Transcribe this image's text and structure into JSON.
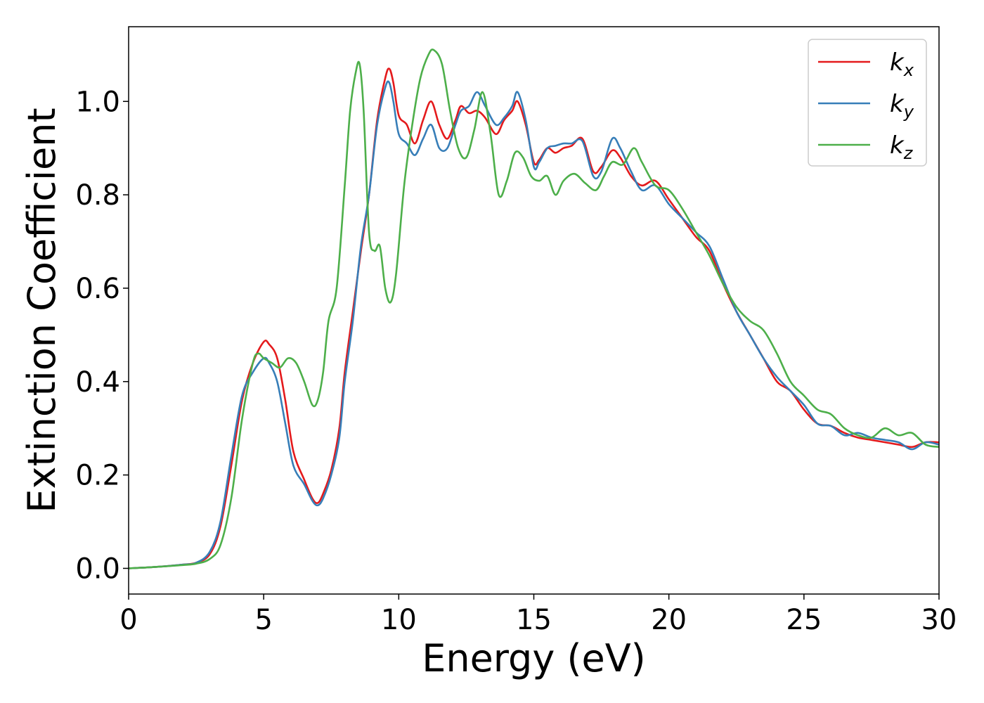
{
  "chart_data": {
    "type": "line",
    "xlabel": "Energy (eV)",
    "ylabel": "Extinction Coefficient",
    "xlim": [
      0,
      30
    ],
    "ylim": [
      -0.055,
      1.16
    ],
    "xticks": [
      0,
      5,
      10,
      15,
      20,
      25,
      30
    ],
    "xtick_labels": [
      "0",
      "5",
      "10",
      "15",
      "20",
      "25",
      "30"
    ],
    "yticks": [
      0.0,
      0.2,
      0.4,
      0.6,
      0.8,
      1.0
    ],
    "ytick_labels": [
      "0.0",
      "0.2",
      "0.4",
      "0.6",
      "0.8",
      "1.0"
    ],
    "grid": false,
    "legend_position": "top-right",
    "series": [
      {
        "name": "k_x",
        "label_base": "k",
        "label_sub": "x",
        "color": "#e41a1c",
        "x": [
          0,
          1,
          2,
          2.5,
          3,
          3.4,
          3.8,
          4.2,
          4.6,
          5.0,
          5.2,
          5.5,
          5.8,
          6.1,
          6.5,
          6.8,
          7.0,
          7.2,
          7.5,
          7.8,
          8.0,
          8.3,
          8.6,
          8.9,
          9.2,
          9.5,
          9.65,
          9.8,
          10.0,
          10.3,
          10.6,
          10.9,
          11.2,
          11.5,
          11.8,
          12.1,
          12.3,
          12.6,
          12.9,
          13.2,
          13.6,
          13.9,
          14.2,
          14.4,
          14.7,
          15.0,
          15.2,
          15.5,
          15.8,
          16.1,
          16.4,
          16.8,
          17.2,
          17.5,
          17.9,
          18.2,
          18.6,
          19.0,
          19.5,
          20.0,
          20.5,
          21.0,
          21.5,
          22.0,
          22.5,
          23.0,
          23.5,
          24.0,
          24.5,
          25.0,
          25.5,
          26.0,
          26.5,
          27.0,
          27.5,
          28.0,
          28.5,
          29.0,
          29.5,
          30.0
        ],
        "values": [
          0.0,
          0.003,
          0.008,
          0.012,
          0.03,
          0.09,
          0.22,
          0.36,
          0.44,
          0.485,
          0.48,
          0.45,
          0.36,
          0.25,
          0.19,
          0.15,
          0.14,
          0.16,
          0.21,
          0.3,
          0.42,
          0.55,
          0.68,
          0.8,
          0.96,
          1.05,
          1.07,
          1.04,
          0.97,
          0.95,
          0.91,
          0.96,
          1.0,
          0.95,
          0.92,
          0.96,
          0.99,
          0.975,
          0.98,
          0.965,
          0.93,
          0.96,
          0.98,
          1.0,
          0.95,
          0.87,
          0.875,
          0.9,
          0.89,
          0.9,
          0.905,
          0.92,
          0.85,
          0.86,
          0.895,
          0.88,
          0.84,
          0.82,
          0.83,
          0.79,
          0.75,
          0.71,
          0.68,
          0.61,
          0.55,
          0.5,
          0.45,
          0.4,
          0.38,
          0.34,
          0.31,
          0.305,
          0.29,
          0.28,
          0.275,
          0.27,
          0.265,
          0.26,
          0.27,
          0.27
        ]
      },
      {
        "name": "k_y",
        "label_base": "k",
        "label_sub": "y",
        "color": "#377eb8",
        "x": [
          0,
          1,
          2,
          2.5,
          3,
          3.4,
          3.8,
          4.2,
          4.6,
          5.0,
          5.2,
          5.5,
          5.8,
          6.1,
          6.5,
          6.8,
          7.0,
          7.2,
          7.5,
          7.8,
          8.0,
          8.3,
          8.6,
          8.9,
          9.2,
          9.5,
          9.65,
          9.8,
          10.0,
          10.3,
          10.6,
          10.9,
          11.2,
          11.5,
          11.8,
          12.1,
          12.3,
          12.6,
          12.9,
          13.2,
          13.6,
          13.9,
          14.2,
          14.4,
          14.7,
          15.0,
          15.2,
          15.5,
          15.8,
          16.1,
          16.4,
          16.8,
          17.2,
          17.5,
          17.9,
          18.2,
          18.6,
          19.0,
          19.5,
          20.0,
          20.5,
          21.0,
          21.5,
          22.0,
          22.5,
          23.0,
          23.5,
          24.0,
          24.5,
          25.0,
          25.5,
          26.0,
          26.5,
          27.0,
          27.5,
          28.0,
          28.5,
          29.0,
          29.5,
          30.0
        ],
        "values": [
          0.0,
          0.003,
          0.008,
          0.012,
          0.035,
          0.1,
          0.24,
          0.37,
          0.42,
          0.45,
          0.44,
          0.4,
          0.31,
          0.22,
          0.18,
          0.145,
          0.135,
          0.15,
          0.2,
          0.28,
          0.4,
          0.53,
          0.69,
          0.8,
          0.95,
          1.03,
          1.04,
          1.0,
          0.93,
          0.91,
          0.885,
          0.92,
          0.95,
          0.9,
          0.9,
          0.95,
          0.98,
          0.99,
          1.02,
          0.99,
          0.95,
          0.965,
          0.99,
          1.02,
          0.96,
          0.86,
          0.87,
          0.9,
          0.905,
          0.91,
          0.91,
          0.915,
          0.84,
          0.85,
          0.92,
          0.9,
          0.85,
          0.81,
          0.82,
          0.78,
          0.75,
          0.72,
          0.69,
          0.62,
          0.55,
          0.5,
          0.45,
          0.41,
          0.38,
          0.35,
          0.31,
          0.305,
          0.285,
          0.29,
          0.28,
          0.275,
          0.27,
          0.255,
          0.27,
          0.265
        ]
      },
      {
        "name": "k_z",
        "label_base": "k",
        "label_sub": "z",
        "color": "#4daf4a",
        "x": [
          0,
          1,
          2,
          2.5,
          3,
          3.4,
          3.8,
          4.2,
          4.6,
          4.8,
          5.0,
          5.3,
          5.6,
          5.9,
          6.2,
          6.5,
          6.8,
          7.0,
          7.2,
          7.4,
          7.7,
          8.0,
          8.2,
          8.4,
          8.55,
          8.7,
          8.9,
          9.1,
          9.3,
          9.5,
          9.7,
          9.9,
          10.2,
          10.5,
          10.8,
          11.1,
          11.3,
          11.6,
          11.9,
          12.2,
          12.5,
          12.8,
          13.1,
          13.4,
          13.7,
          14.0,
          14.3,
          14.6,
          14.9,
          15.2,
          15.5,
          15.8,
          16.1,
          16.5,
          16.9,
          17.3,
          17.6,
          17.9,
          18.3,
          18.7,
          19.0,
          19.5,
          20.0,
          20.5,
          21.0,
          21.5,
          22.0,
          22.5,
          23.0,
          23.5,
          24.0,
          24.5,
          25.0,
          25.5,
          26.0,
          26.5,
          27.0,
          27.5,
          28.0,
          28.5,
          29.0,
          29.5,
          30.0
        ],
        "values": [
          0.0,
          0.003,
          0.007,
          0.01,
          0.02,
          0.05,
          0.15,
          0.32,
          0.44,
          0.46,
          0.45,
          0.44,
          0.43,
          0.45,
          0.44,
          0.4,
          0.35,
          0.36,
          0.42,
          0.53,
          0.6,
          0.82,
          0.98,
          1.06,
          1.08,
          0.98,
          0.72,
          0.68,
          0.69,
          0.6,
          0.57,
          0.63,
          0.82,
          0.95,
          1.05,
          1.1,
          1.11,
          1.08,
          0.98,
          0.9,
          0.88,
          0.94,
          1.02,
          0.93,
          0.8,
          0.83,
          0.89,
          0.88,
          0.84,
          0.83,
          0.84,
          0.8,
          0.83,
          0.845,
          0.825,
          0.81,
          0.84,
          0.87,
          0.865,
          0.9,
          0.87,
          0.82,
          0.81,
          0.77,
          0.72,
          0.67,
          0.61,
          0.56,
          0.53,
          0.51,
          0.46,
          0.4,
          0.37,
          0.34,
          0.33,
          0.3,
          0.285,
          0.28,
          0.3,
          0.285,
          0.29,
          0.265,
          0.26
        ]
      }
    ]
  }
}
